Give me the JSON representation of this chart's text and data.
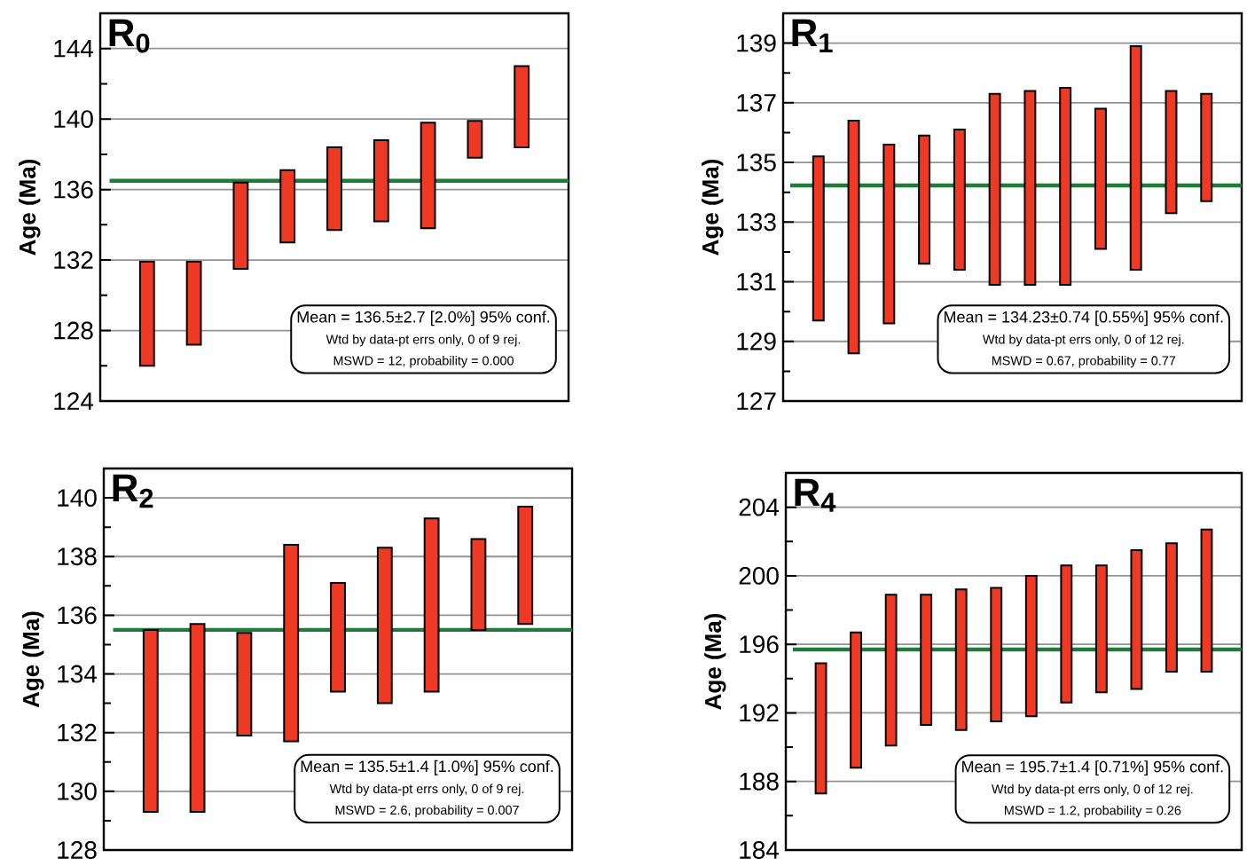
{
  "chart_data": [
    {
      "type": "bar",
      "title": "R$_{0}$",
      "ylabel": "Age (Ma)",
      "categories": [
        null,
        null,
        null,
        null,
        null,
        null,
        null,
        null,
        null
      ],
      "base": [
        126.0,
        127.2,
        131.5,
        133.0,
        133.7,
        134.2,
        133.8,
        137.8,
        138.4
      ],
      "values": [
        5.9,
        4.7,
        4.9,
        4.1,
        4.7,
        4.6,
        6.0,
        2.1,
        4.6
      ],
      "color": "#ee3a24",
      "ylim": [
        124,
        146
      ],
      "yticks": [
        124,
        {
          "value": 126,
          "label": null
        },
        128,
        {
          "value": 130,
          "label": null
        },
        132,
        {
          "value": 134,
          "label": null
        },
        136,
        {
          "value": 138,
          "label": null
        },
        140,
        {
          "value": 142,
          "label": null
        },
        144
      ],
      "grid": "y",
      "ref_lines": [
        {
          "axis": "y",
          "value": 136.5,
          "color": "#1e7b3a"
        }
      ],
      "annotations": [
        "Mean = 136.5±2.7  [2.0%]  95% conf.",
        "Wtd by data-pt errs only, 0 of 9 rej.",
        "MSWD = 12, probability = 0.000"
      ]
    },
    {
      "type": "bar",
      "title": "R$_{1}$",
      "ylabel": "Age (Ma)",
      "categories": [
        null,
        null,
        null,
        null,
        null,
        null,
        null,
        null,
        null,
        null,
        null,
        null
      ],
      "base": [
        129.7,
        128.6,
        129.6,
        131.6,
        131.4,
        130.9,
        130.9,
        130.9,
        132.1,
        131.4,
        133.3,
        133.7
      ],
      "values": [
        5.5,
        7.8,
        6.0,
        4.3,
        4.7,
        6.4,
        6.5,
        6.6,
        4.7,
        7.5,
        4.1,
        3.6
      ],
      "color": "#ee3a24",
      "ylim": [
        127,
        140
      ],
      "yticks": [
        127,
        {
          "value": 128,
          "label": null
        },
        129,
        {
          "value": 130,
          "label": null
        },
        131,
        {
          "value": 132,
          "label": null
        },
        133,
        {
          "value": 134,
          "label": null
        },
        135,
        {
          "value": 136,
          "label": null
        },
        137,
        {
          "value": 138,
          "label": null
        },
        139
      ],
      "grid": "y",
      "ref_lines": [
        {
          "axis": "y",
          "value": 134.23,
          "color": "#1e7b3a"
        }
      ],
      "annotations": [
        "Mean = 134.23±0.74  [0.55%]  95% conf.",
        "Wtd by data-pt errs only, 0 of 12 rej.",
        "MSWD = 0.67, probability = 0.77"
      ]
    },
    {
      "type": "bar",
      "title": "R$_{2}$",
      "ylabel": "Age (Ma)",
      "categories": [
        null,
        null,
        null,
        null,
        null,
        null,
        null,
        null,
        null
      ],
      "base": [
        129.3,
        129.3,
        131.9,
        131.7,
        133.4,
        133.0,
        133.4,
        135.5,
        135.7
      ],
      "values": [
        6.2,
        6.4,
        3.5,
        6.7,
        3.7,
        5.3,
        5.9,
        3.1,
        4.0
      ],
      "color": "#ee3a24",
      "ylim": [
        128,
        141
      ],
      "yticks": [
        128,
        {
          "value": 129,
          "label": null
        },
        130,
        {
          "value": 131,
          "label": null
        },
        132,
        {
          "value": 133,
          "label": null
        },
        134,
        {
          "value": 135,
          "label": null
        },
        136,
        {
          "value": 137,
          "label": null
        },
        138,
        {
          "value": 139,
          "label": null
        },
        140
      ],
      "grid": "y",
      "ref_lines": [
        {
          "axis": "y",
          "value": 135.5,
          "color": "#1e7b3a"
        }
      ],
      "annotations": [
        "Mean = 135.5±1.4  [1.0%]  95% conf.",
        "Wtd by data-pt errs only, 0 of 9 rej.",
        "MSWD = 2.6, probability = 0.007"
      ]
    },
    {
      "type": "bar",
      "title": "R$_{4}$",
      "ylabel": "Age (Ma)",
      "categories": [
        null,
        null,
        null,
        null,
        null,
        null,
        null,
        null,
        null,
        null,
        null,
        null
      ],
      "base": [
        187.3,
        188.8,
        190.1,
        191.3,
        191.0,
        191.5,
        191.8,
        192.6,
        193.2,
        193.4,
        194.4,
        194.4
      ],
      "values": [
        7.6,
        7.9,
        8.8,
        7.6,
        8.2,
        7.8,
        8.2,
        8.0,
        7.4,
        8.1,
        7.5,
        8.3
      ],
      "color": "#ee3a24",
      "ylim": [
        184,
        206
      ],
      "yticks": [
        184,
        {
          "value": 186,
          "label": null
        },
        188,
        {
          "value": 190,
          "label": null
        },
        192,
        {
          "value": 194,
          "label": null
        },
        196,
        {
          "value": 198,
          "label": null
        },
        200,
        {
          "value": 202,
          "label": null
        },
        204
      ],
      "grid": "y",
      "ref_lines": [
        {
          "axis": "y",
          "value": 195.7,
          "color": "#1e7b3a"
        }
      ],
      "annotations": [
        "Mean = 195.7±1.4  [0.71%]  95% conf.",
        "Wtd by data-pt errs only, 0 of 12 rej.",
        "MSWD = 1.2, probability = 0.26"
      ]
    }
  ]
}
